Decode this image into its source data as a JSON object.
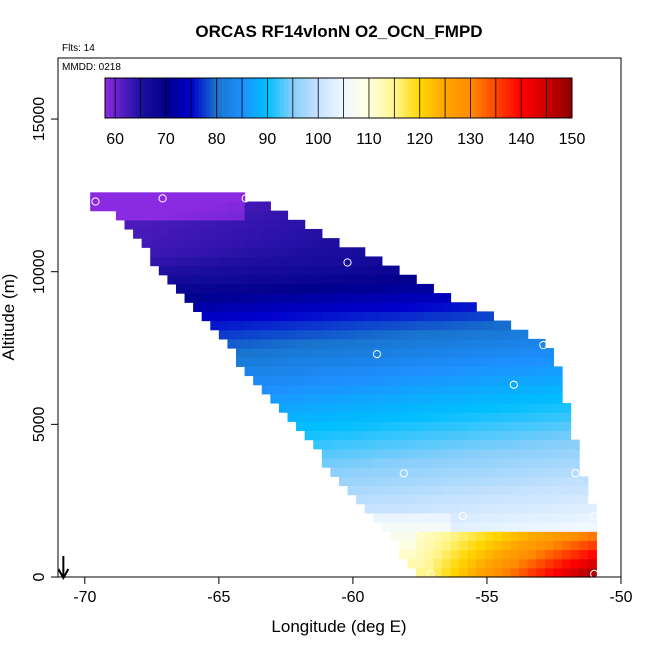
{
  "chart_data": {
    "type": "heatmap",
    "title": "ORCAS RF14vlonN O2_OCN_FMPD",
    "annotations": {
      "flights": "Flts: 14",
      "date": "MMDD: 0218"
    },
    "xlabel": "Longitude (deg E)",
    "ylabel": "Altitude (m)",
    "xlim": [
      -71,
      -50
    ],
    "ylim": [
      0,
      17000
    ],
    "x_ticks": [
      -70,
      -65,
      -60,
      -55,
      -50
    ],
    "x_tick_labels": [
      "-70",
      "-65",
      "-60",
      "-55",
      "-50"
    ],
    "y_ticks": [
      0,
      5000,
      10000,
      15000
    ],
    "y_tick_labels": [
      "0",
      "5000",
      "10000",
      "15000"
    ],
    "colorbar": {
      "min": 58,
      "max": 150,
      "ticks": [
        60,
        70,
        80,
        90,
        100,
        110,
        120,
        130,
        140,
        150
      ],
      "tick_labels": [
        "60",
        "70",
        "80",
        "90",
        "100",
        "110",
        "120",
        "130",
        "140",
        "150"
      ],
      "stops": [
        {
          "value": 58,
          "color": "#8A2BE2"
        },
        {
          "value": 65,
          "color": "#1E0FA0"
        },
        {
          "value": 70,
          "color": "#00008B"
        },
        {
          "value": 75,
          "color": "#0000CD"
        },
        {
          "value": 80,
          "color": "#1874CD"
        },
        {
          "value": 85,
          "color": "#1E90FF"
        },
        {
          "value": 90,
          "color": "#00BFFF"
        },
        {
          "value": 95,
          "color": "#87CEFA"
        },
        {
          "value": 100,
          "color": "#C6E2FF"
        },
        {
          "value": 105,
          "color": "#F0F8FF"
        },
        {
          "value": 110,
          "color": "#FFFFE0"
        },
        {
          "value": 115,
          "color": "#FFF68F"
        },
        {
          "value": 120,
          "color": "#FFD700"
        },
        {
          "value": 125,
          "color": "#FFA500"
        },
        {
          "value": 130,
          "color": "#FF8C00"
        },
        {
          "value": 135,
          "color": "#FF4500"
        },
        {
          "value": 140,
          "color": "#FF0000"
        },
        {
          "value": 145,
          "color": "#CD0000"
        },
        {
          "value": 150,
          "color": "#8B0000"
        }
      ]
    },
    "data_extent": {
      "lon_range": [
        -69.8,
        -51.0
      ],
      "alt_range": [
        0,
        12500
      ]
    },
    "sample_points": [
      {
        "lon": -69.6,
        "alt": 12300
      },
      {
        "lon": -67.1,
        "alt": 12400
      },
      {
        "lon": -64.0,
        "alt": 12400
      },
      {
        "lon": -60.2,
        "alt": 10300
      },
      {
        "lon": -59.1,
        "alt": 7300
      },
      {
        "lon": -52.9,
        "alt": 7600
      },
      {
        "lon": -54.0,
        "alt": 6300
      },
      {
        "lon": -58.1,
        "alt": 3400
      },
      {
        "lon": -51.7,
        "alt": 3400
      },
      {
        "lon": -57.6,
        "alt": 1600
      },
      {
        "lon": -55.9,
        "alt": 2000
      },
      {
        "lon": -51.0,
        "alt": 2000
      },
      {
        "lon": -57.1,
        "alt": 100
      },
      {
        "lon": -51.0,
        "alt": 100
      }
    ],
    "marker": {
      "lon": -70.8,
      "direction": "down"
    }
  }
}
